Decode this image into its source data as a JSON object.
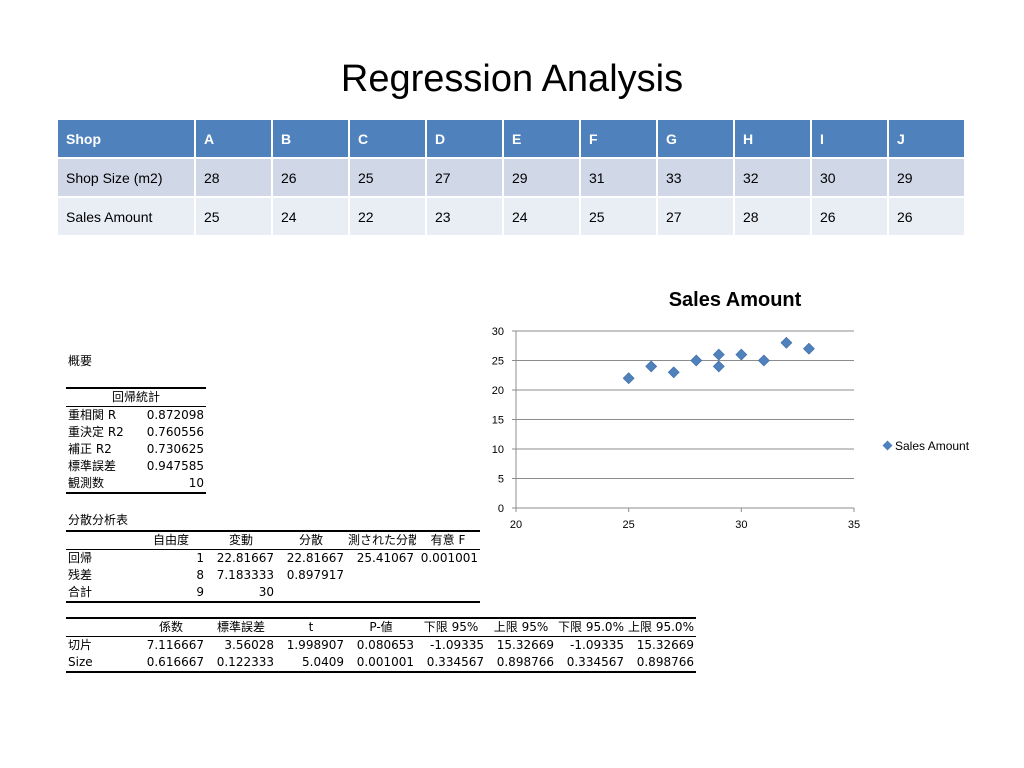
{
  "title": "Regression Analysis",
  "table": {
    "header": [
      "Shop",
      "A",
      "B",
      "C",
      "D",
      "E",
      "F",
      "G",
      "H",
      "I",
      "J"
    ],
    "rows": [
      [
        "Shop Size (m2)",
        "28",
        "26",
        "25",
        "27",
        "29",
        "31",
        "33",
        "32",
        "30",
        "29"
      ],
      [
        "Sales Amount",
        "25",
        "24",
        "22",
        "23",
        "24",
        "25",
        "27",
        "28",
        "26",
        "26"
      ]
    ]
  },
  "summary": {
    "heading": "概要",
    "regstats": {
      "title": "回帰統計",
      "rows": [
        [
          "重相関 R",
          "0.872098"
        ],
        [
          "重決定 R2",
          "0.760556"
        ],
        [
          "補正 R2",
          "0.730625"
        ],
        [
          "標準誤差",
          "0.947585"
        ],
        [
          "観測数",
          "10"
        ]
      ]
    },
    "anova": {
      "title": "分散分析表",
      "header": [
        "",
        "自由度",
        "変動",
        "分散",
        "測された分散",
        "有意 F"
      ],
      "rows": [
        [
          "回帰",
          "1",
          "22.81667",
          "22.81667",
          "25.41067",
          "0.001001"
        ],
        [
          "残差",
          "8",
          "7.183333",
          "0.897917",
          "",
          ""
        ],
        [
          "合計",
          "9",
          "30",
          "",
          "",
          ""
        ]
      ]
    },
    "coef": {
      "header": [
        "",
        "係数",
        "標準誤差",
        "t",
        "P-値",
        "下限 95%",
        "上限 95%",
        "下限 95.0%",
        "上限 95.0%"
      ],
      "rows": [
        [
          "切片",
          "7.116667",
          "3.56028",
          "1.998907",
          "0.080653",
          "-1.09335",
          "15.32669",
          "-1.09335",
          "15.32669"
        ],
        [
          "Size",
          "0.616667",
          "0.122333",
          "5.0409",
          "0.001001",
          "0.334567",
          "0.898766",
          "0.334567",
          "0.898766"
        ]
      ]
    }
  },
  "chart_data": {
    "type": "scatter",
    "title": "Sales Amount",
    "series": [
      {
        "name": "Sales Amount",
        "color": "#4f81bd",
        "marker": "diamond",
        "x": [
          28,
          26,
          25,
          27,
          29,
          31,
          33,
          32,
          30,
          29
        ],
        "y": [
          25,
          24,
          22,
          23,
          24,
          25,
          27,
          28,
          26,
          26
        ]
      }
    ],
    "xlim": [
      20,
      35
    ],
    "ylim": [
      0,
      30
    ],
    "xticks": [
      "20",
      "25",
      "30",
      "35"
    ],
    "yticks": [
      "0",
      "5",
      "10",
      "15",
      "20",
      "25",
      "30"
    ],
    "grid": "horizontal",
    "legend": "right"
  }
}
